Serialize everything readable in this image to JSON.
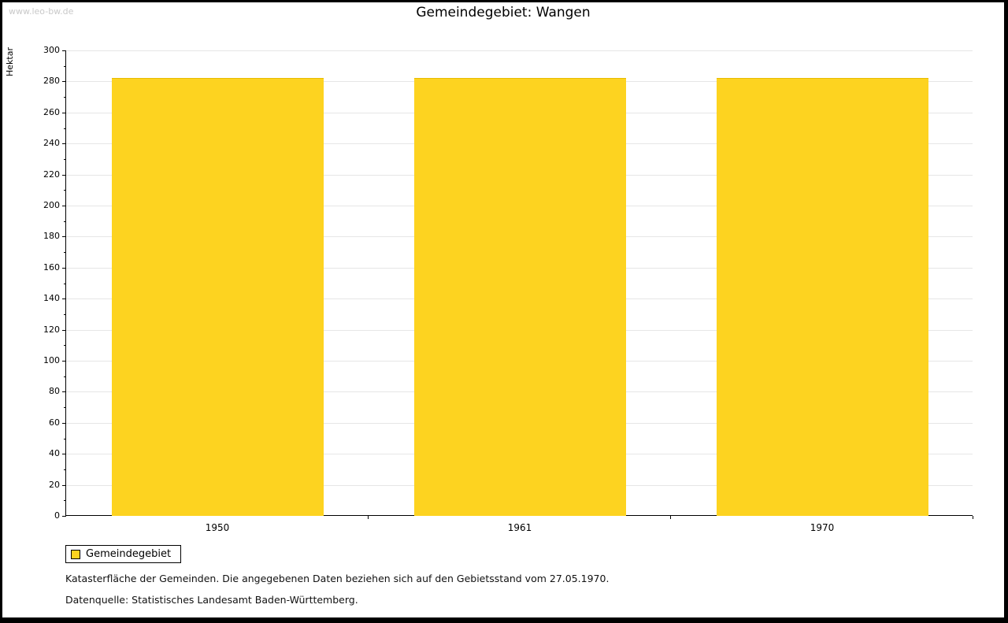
{
  "page": {
    "watermark": "www.leo-bw.de",
    "title": "Gemeindegebiet: Wangen"
  },
  "chart_data": {
    "type": "bar",
    "title": "Gemeindegebiet: Wangen",
    "xlabel": "",
    "ylabel": "Hektar",
    "categories": [
      "1950",
      "1961",
      "1970"
    ],
    "series": [
      {
        "name": "Gemeindegebiet",
        "values": [
          282,
          282,
          282
        ]
      }
    ],
    "ylim": [
      0,
      300
    ],
    "ytick_step": 20,
    "ytick_minor_step": 10,
    "grid": true,
    "legend_position": "bottom-left",
    "bar_color": "#FDD320",
    "bar_border_color": "#E8BC00"
  },
  "legend": {
    "label": "Gemeindegebiet"
  },
  "footnotes": {
    "line1": "Katasterfläche der Gemeinden. Die angegebenen Daten beziehen sich auf den Gebietsstand vom 27.05.1970.",
    "line2": "Datenquelle: Statistisches Landesamt Baden-Württemberg."
  }
}
